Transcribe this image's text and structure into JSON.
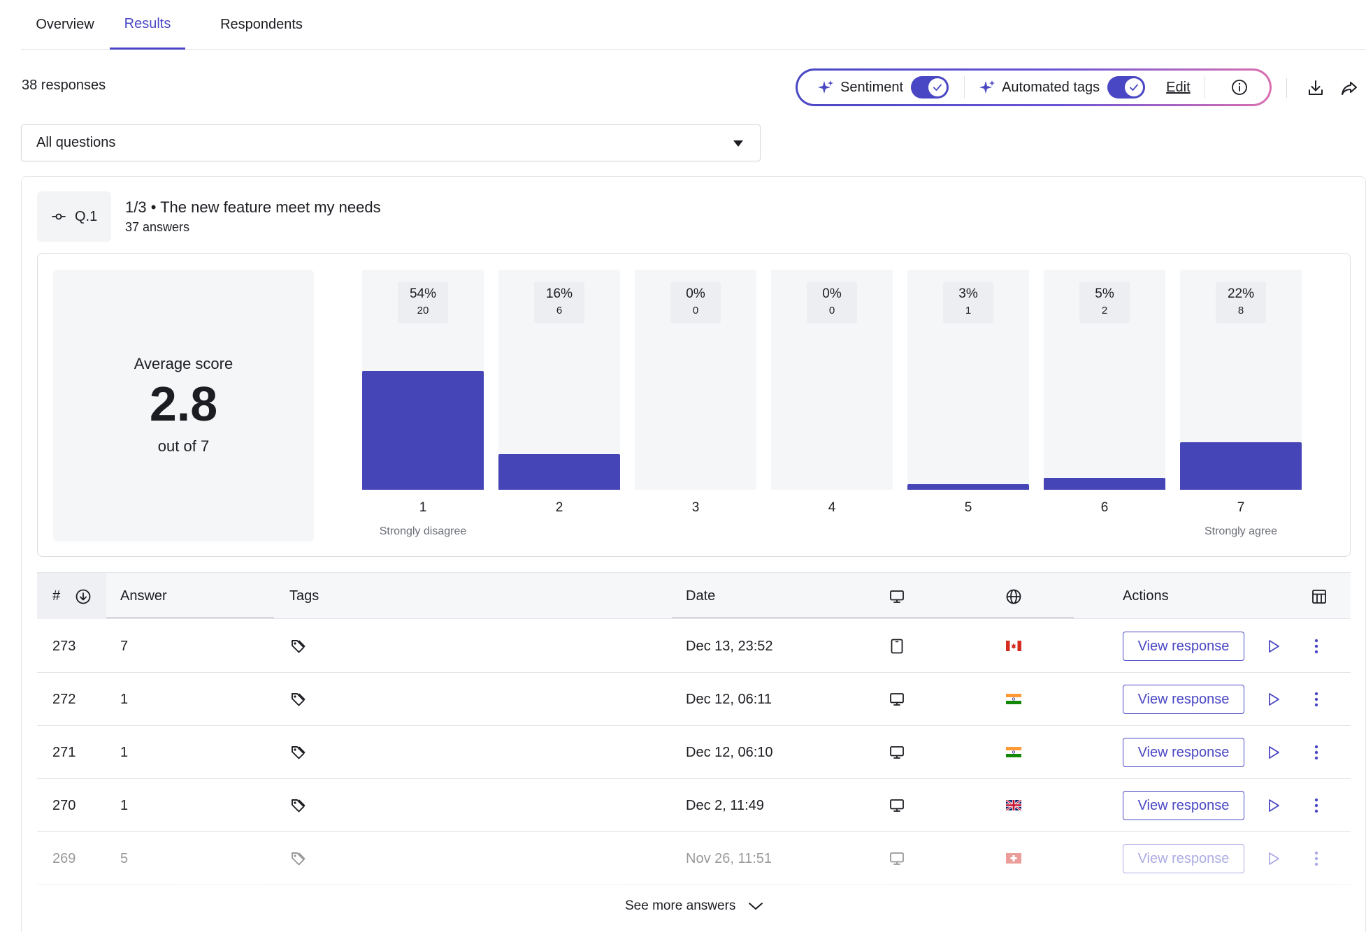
{
  "tabs": [
    {
      "label": "Overview",
      "active": false
    },
    {
      "label": "Results",
      "active": true
    },
    {
      "label": "Respondents",
      "active": false
    }
  ],
  "summary": {
    "response_count": "38 responses"
  },
  "ai_panel": {
    "sentiment_label": "Sentiment",
    "sentiment_enabled": true,
    "tags_label": "Automated tags",
    "tags_enabled": true,
    "edit_label": "Edit"
  },
  "filter": {
    "selected": "All questions"
  },
  "question": {
    "badge": "Q.1",
    "title": "1/3 • The new feature meet my needs",
    "answers": "37 answers"
  },
  "average": {
    "label": "Average score",
    "value": "2.8",
    "out_of": "out of 7"
  },
  "chart_data": {
    "type": "bar",
    "categories": [
      "1",
      "2",
      "3",
      "4",
      "5",
      "6",
      "7"
    ],
    "values": [
      20,
      6,
      0,
      0,
      1,
      2,
      8
    ],
    "percent_labels": [
      "54%",
      "16%",
      "0%",
      "0%",
      "3%",
      "5%",
      "22%"
    ],
    "count_labels": [
      "20",
      "6",
      "0",
      "0",
      "1",
      "2",
      "8"
    ],
    "scale_labels": {
      "low": "Strongly disagree",
      "high": "Strongly agree"
    },
    "ylim": [
      0,
      37
    ]
  },
  "table": {
    "headers": {
      "number": "#",
      "answer": "Answer",
      "tags": "Tags",
      "date": "Date",
      "actions": "Actions"
    },
    "rows": [
      {
        "id": "273",
        "answer": "7",
        "date": "Dec 13, 23:52",
        "device": "tablet-icon",
        "country": "flag-canada-icon",
        "action": "View response"
      },
      {
        "id": "272",
        "answer": "1",
        "date": "Dec 12, 06:11",
        "device": "desktop-icon",
        "country": "flag-india-icon",
        "action": "View response"
      },
      {
        "id": "271",
        "answer": "1",
        "date": "Dec 12, 06:10",
        "device": "desktop-icon",
        "country": "flag-india-icon",
        "action": "View response"
      },
      {
        "id": "270",
        "answer": "1",
        "date": "Dec 2, 11:49",
        "device": "desktop-icon",
        "country": "flag-uk-icon",
        "action": "View response"
      },
      {
        "id": "269",
        "answer": "5",
        "date": "Nov 26, 11:51",
        "device": "desktop-icon",
        "country": "flag-switzerland-icon",
        "action": "View response"
      }
    ]
  },
  "see_more": "See more answers",
  "colors": {
    "accent": "#4a47c4",
    "bar": "#4545b8",
    "bar_track": "#f5f6f8"
  }
}
